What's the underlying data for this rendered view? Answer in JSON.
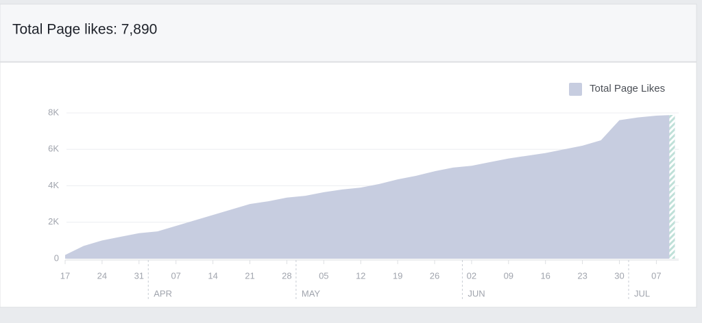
{
  "header": {
    "title": "Total Page likes: 7,890"
  },
  "chart_data": {
    "type": "area",
    "categories": [
      "17",
      null,
      "24",
      null,
      "31",
      null,
      "07",
      null,
      "14",
      null,
      "21",
      null,
      "28",
      null,
      "05",
      null,
      "12",
      null,
      "19",
      null,
      "26",
      null,
      "02",
      null,
      "09",
      null,
      "16",
      null,
      "23",
      null,
      "30",
      null,
      "07",
      null
    ],
    "months": [
      null,
      null,
      null,
      null,
      null,
      "APR",
      null,
      null,
      null,
      null,
      null,
      null,
      null,
      "MAY",
      null,
      null,
      null,
      null,
      null,
      null,
      null,
      null,
      "JUN",
      null,
      null,
      null,
      null,
      null,
      null,
      null,
      null,
      "JUL",
      null,
      null
    ],
    "series": [
      {
        "name": "Total Page Likes",
        "color": "#c7cde0",
        "values": [
          200,
          700,
          1000,
          1200,
          1400,
          1500,
          1800,
          2100,
          2400,
          2700,
          3000,
          3150,
          3350,
          3450,
          3650,
          3800,
          3900,
          4100,
          4350,
          4550,
          4800,
          5000,
          5100,
          5300,
          5500,
          5650,
          5800,
          6000,
          6200,
          6500,
          7600,
          7750,
          7850,
          7890
        ]
      }
    ],
    "ylim": [
      0,
      8000
    ],
    "yticks": [
      0,
      {
        "value": 2000,
        "label": "2K"
      },
      {
        "value": 4000,
        "label": "4K"
      },
      {
        "value": 6000,
        "label": "6K"
      },
      {
        "value": 8000,
        "label": "8K"
      }
    ],
    "grid": true,
    "legend": "top-right"
  }
}
